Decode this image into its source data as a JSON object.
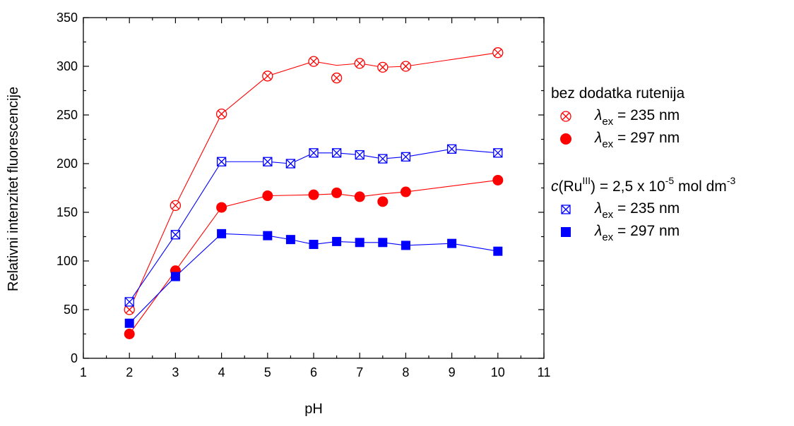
{
  "chart_data": {
    "type": "scatter",
    "xlabel": "pH",
    "ylabel": "Relativni intenzitet fluorescencije",
    "xlim": [
      1,
      11
    ],
    "ylim": [
      0,
      350
    ],
    "xticks": [
      1,
      2,
      3,
      4,
      5,
      6,
      7,
      8,
      9,
      10,
      11
    ],
    "yticks": [
      0,
      50,
      100,
      150,
      200,
      250,
      300,
      350
    ],
    "legend_position": "right",
    "grid": false,
    "series": [
      {
        "key": "bez-235",
        "color": "#ff0000",
        "marker": "circle-x",
        "x": [
          2,
          3,
          4,
          5,
          6,
          6.5,
          7,
          7.5,
          8,
          10
        ],
        "y": [
          50,
          157,
          251,
          290,
          305,
          288,
          303,
          299,
          300,
          314
        ],
        "line_x": [
          2,
          3,
          4,
          5,
          6,
          6.5,
          7,
          7.5,
          8,
          10
        ],
        "line_y": [
          50,
          157,
          251,
          290,
          305,
          301,
          303,
          299,
          300,
          314
        ]
      },
      {
        "key": "bez-297",
        "color": "#ff0000",
        "marker": "circle-filled",
        "x": [
          2,
          3,
          4,
          5,
          6,
          6.5,
          7,
          7.5,
          8,
          10
        ],
        "y": [
          25,
          90,
          155,
          167,
          168,
          170,
          166,
          161,
          171,
          183
        ],
        "line_x": [
          2,
          3,
          4,
          5,
          6,
          6.5,
          7,
          7.5,
          8,
          10
        ],
        "line_y": [
          25,
          90,
          155,
          167,
          168,
          169,
          166,
          169,
          171,
          183
        ]
      },
      {
        "key": "ru-235",
        "color": "#0000ff",
        "marker": "square-x",
        "x": [
          2,
          3,
          4,
          5,
          5.5,
          6,
          6.5,
          7,
          7.5,
          8,
          9,
          10
        ],
        "y": [
          58,
          127,
          202,
          202,
          200,
          211,
          211,
          209,
          205,
          207,
          215,
          211
        ],
        "line_x": [
          2,
          3,
          4,
          5,
          5.5,
          6,
          6.5,
          7,
          7.5,
          8,
          9,
          10
        ],
        "line_y": [
          58,
          127,
          202,
          202,
          200,
          211,
          211,
          209,
          205,
          207,
          215,
          211
        ]
      },
      {
        "key": "ru-297",
        "color": "#0000ff",
        "marker": "square-filled",
        "x": [
          2,
          3,
          4,
          5,
          5.5,
          6,
          6.5,
          7,
          7.5,
          8,
          9,
          10
        ],
        "y": [
          36,
          84,
          128,
          126,
          122,
          117,
          120,
          119,
          119,
          116,
          118,
          110
        ],
        "line_x": [
          2,
          3,
          4,
          5,
          5.5,
          6,
          6.5,
          7,
          7.5,
          8,
          9,
          10
        ],
        "line_y": [
          36,
          84,
          128,
          126,
          122,
          117,
          120,
          119,
          119,
          116,
          118,
          110
        ]
      }
    ]
  },
  "legend": {
    "group1_title": "bez dodatka rutenija",
    "group1": [
      {
        "series": "bez-235",
        "symbol": "λ",
        "subscript": "ex",
        "text": " = 235 nm"
      },
      {
        "series": "bez-297",
        "symbol": "λ",
        "subscript": "ex",
        "text": " = 297 nm"
      }
    ],
    "group2_title": {
      "c": "c",
      "ru": "(Ru",
      "ru_sup": "III",
      "mid": ") = 2,5 x 10",
      "exp": "-5",
      "unit": " mol dm",
      "unit_exp": "-3"
    },
    "group2": [
      {
        "series": "ru-235",
        "symbol": "λ",
        "subscript": "ex",
        "text": " = 235 nm"
      },
      {
        "series": "ru-297",
        "symbol": "λ",
        "subscript": "ex",
        "text": " = 297 nm"
      }
    ]
  }
}
